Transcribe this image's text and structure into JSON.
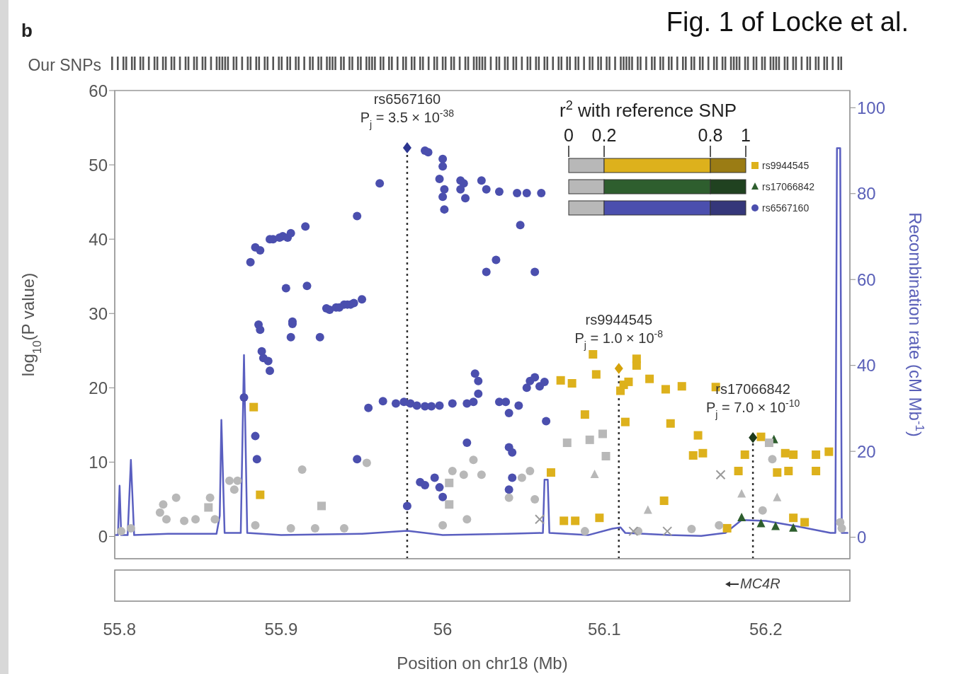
{
  "chart_data": {
    "type": "scatter",
    "xlabel": "Position on chr18 (Mb)",
    "ylabel": "log$_{10}$(P value)",
    "y2label": "Recombination rate (cM Mb$^{-1}$)",
    "legend_title": "r$^{2}$ with reference SNP",
    "legend": "top right",
    "xlim": [
      55.797,
      56.252
    ],
    "xticks": [
      55.8,
      55.9,
      56,
      56.1,
      56.2
    ],
    "ylim": [
      -3,
      60
    ],
    "yticks": [
      0,
      10,
      20,
      30,
      40,
      50,
      60
    ],
    "y2lim": [
      -5,
      104
    ],
    "y2ticks": [
      0,
      20,
      40,
      60,
      80,
      100
    ],
    "annotations": [
      "b",
      "Fig. 1 of Locke et al.",
      "Our SNPs",
      "MC4R",
      "0",
      "0.2",
      "0.8",
      "1",
      {
        "text": "rs6567160\nP$_{j}$ = 3.5 × 10$^{-38}$",
        "x": 55.978,
        "y": 52.3
      },
      {
        "text": "rs9944545\nP$_{j}$ = 1.0 × 10$^{-8}$",
        "x": 56.109,
        "y": 22.6
      },
      {
        "text": "rs17066842\nP$_{j}$ = 7.0 × 10$^{-10}$",
        "x": 56.192,
        "y": 13.3
      }
    ],
    "ref_lines": [
      {
        "axis": "x",
        "value": 55.978,
        "color": "#333333",
        "line_style": "dotted"
      },
      {
        "axis": "x",
        "value": 56.109,
        "color": "#333333",
        "line_style": "dotted"
      },
      {
        "axis": "x",
        "value": 56.192,
        "color": "#333333",
        "line_style": "dotted"
      }
    ],
    "series": [
      {
        "name": "rs9944545",
        "marker": "square",
        "color": "#ddb11c",
        "x": [
          55.883,
          55.887,
          56.073,
          56.08,
          56.093,
          56.095,
          56.088,
          56.112,
          56.11,
          56.115,
          56.12,
          56.12,
          56.128,
          56.138,
          56.148,
          56.169,
          56.113,
          56.141,
          56.158,
          56.155,
          56.161,
          56.187,
          56.183,
          56.197,
          56.212,
          56.217,
          56.207,
          56.214,
          56.231,
          56.239,
          56.231,
          56.067,
          56.137,
          56.075,
          56.082,
          56.097,
          56.176,
          56.217,
          56.224
        ],
        "values": [
          17.4,
          5.6,
          21.0,
          20.6,
          24.5,
          21.8,
          16.4,
          20.4,
          19.6,
          20.8,
          23.9,
          23.0,
          21.2,
          19.8,
          20.2,
          20.1,
          15.4,
          15.2,
          13.6,
          10.9,
          11.2,
          11.0,
          8.8,
          13.4,
          11.2,
          11.0,
          8.6,
          8.8,
          11.0,
          11.4,
          8.8,
          8.6,
          4.8,
          2.1,
          2.1,
          2.5,
          1.1,
          2.5,
          1.9
        ]
      },
      {
        "name": "rs17066842",
        "marker": "triangle",
        "color": "#2e5e2e",
        "x": [
          56.205,
          56.185,
          56.197,
          56.206,
          56.217
        ],
        "values": [
          13.0,
          2.5,
          1.7,
          1.3,
          1.1
        ]
      },
      {
        "name": "rs6567160",
        "marker": "circle",
        "color": "#4b4fae",
        "x": [
          55.881,
          55.884,
          55.887,
          55.893,
          55.895,
          55.899,
          55.901,
          55.904,
          55.906,
          55.915,
          55.947,
          55.961,
          55.989,
          55.991,
          56.0,
          56.0,
          55.998,
          56.001,
          56.0,
          56.001,
          56.011,
          56.013,
          56.011,
          56.014,
          56.024,
          56.027,
          56.035,
          56.046,
          56.052,
          56.061,
          56.048,
          56.027,
          56.033,
          56.057,
          55.886,
          55.887,
          55.888,
          55.889,
          55.892,
          55.893,
          55.903,
          55.907,
          55.907,
          55.906,
          55.916,
          55.924,
          55.928,
          55.93,
          55.934,
          55.936,
          55.939,
          55.941,
          55.943,
          55.945,
          55.95,
          55.954,
          55.963,
          55.971,
          55.976,
          55.98,
          55.984,
          55.989,
          55.993,
          55.998,
          56.006,
          56.015,
          56.019,
          56.022,
          56.02,
          56.022,
          56.035,
          56.039,
          56.041,
          56.047,
          56.052,
          56.054,
          56.057,
          56.06,
          56.063,
          56.064,
          55.877,
          55.986,
          55.989,
          55.995,
          55.998,
          56.0,
          56.015,
          56.041,
          56.043,
          55.884,
          55.885,
          55.947,
          55.978,
          56.043,
          56.041
        ],
        "values": [
          36.9,
          38.9,
          38.5,
          40.0,
          40.0,
          40.2,
          40.4,
          40.2,
          40.8,
          41.7,
          43.1,
          47.5,
          51.9,
          51.7,
          50.8,
          49.8,
          48.1,
          46.7,
          45.7,
          44.0,
          47.9,
          47.5,
          46.7,
          45.5,
          47.9,
          46.7,
          46.4,
          46.2,
          46.2,
          46.2,
          41.9,
          35.6,
          37.2,
          35.6,
          28.5,
          27.8,
          24.9,
          24.0,
          23.6,
          22.3,
          33.4,
          28.9,
          28.6,
          26.8,
          33.7,
          26.8,
          30.7,
          30.5,
          30.8,
          30.8,
          31.2,
          31.2,
          31.2,
          31.4,
          31.9,
          17.3,
          18.2,
          17.9,
          18.1,
          17.9,
          17.6,
          17.5,
          17.5,
          17.6,
          17.9,
          17.9,
          18.1,
          20.9,
          21.9,
          19.2,
          18.1,
          18.1,
          16.6,
          17.6,
          20.0,
          20.9,
          21.4,
          20.2,
          20.8,
          15.5,
          18.7,
          7.3,
          6.9,
          7.9,
          6.6,
          5.3,
          12.6,
          12.0,
          11.3,
          13.5,
          10.4,
          10.4,
          4.1,
          7.9,
          6.3
        ]
      },
      {
        "marker": "circle",
        "color": "#b8b8b8",
        "x": [
          55.835,
          55.827,
          55.825,
          55.856,
          55.868,
          55.873,
          55.871,
          55.913,
          55.953,
          56.019,
          56.006,
          56.013,
          56.024,
          55.801,
          55.807,
          55.829,
          55.84,
          55.847,
          55.859,
          55.884,
          55.906,
          55.921,
          55.939,
          56.0,
          56.015,
          56.054,
          56.049,
          56.041,
          56.057,
          56.204,
          56.154,
          56.171,
          56.198,
          56.246,
          56.247,
          56.121,
          56.088
        ],
        "values": [
          5.2,
          4.3,
          3.2,
          5.2,
          7.5,
          7.5,
          6.3,
          9.0,
          9.9,
          10.3,
          8.8,
          8.3,
          8.3,
          0.7,
          1.1,
          2.3,
          2.1,
          2.3,
          2.3,
          1.5,
          1.1,
          1.1,
          1.1,
          1.5,
          2.3,
          8.8,
          7.9,
          5.2,
          5.0,
          10.4,
          1.0,
          1.5,
          3.5,
          1.9,
          1.1,
          0.7,
          0.7
        ]
      },
      {
        "marker": "square",
        "color": "#b8b8b8",
        "x": [
          55.855,
          55.925,
          56.004,
          56.004,
          56.077,
          56.091,
          56.099,
          56.101,
          56.202
        ],
        "values": [
          3.9,
          4.1,
          4.3,
          7.2,
          12.6,
          13.0,
          13.8,
          10.8,
          12.6
        ]
      },
      {
        "marker": "triangle",
        "color": "#b8b8b8",
        "x": [
          56.094,
          56.127,
          56.185,
          56.207
        ],
        "values": [
          8.3,
          3.5,
          5.7,
          5.2
        ]
      },
      {
        "marker": "cross",
        "color": "#9a9a9a",
        "x": [
          56.172,
          56.06,
          56.118,
          56.139
        ],
        "values": [
          8.3,
          2.3,
          0.7,
          0.7
        ]
      },
      {
        "marker": "diamond",
        "colors": [
          "#2c3590",
          "#d4a20a",
          "#1c3a1c"
        ],
        "color": "#333333",
        "x": [
          55.978,
          56.109,
          56.192
        ],
        "values": [
          52.3,
          22.6,
          13.3
        ]
      },
      {
        "type": "line",
        "axis": "y2",
        "marker": "none",
        "color": "#5a5fc0",
        "x": [
          55.797,
          55.799,
          55.8,
          55.801,
          55.805,
          55.807,
          55.809,
          55.83,
          55.86,
          55.862,
          55.863,
          55.865,
          55.875,
          55.877,
          55.879,
          55.9,
          55.95,
          55.978,
          56.0,
          56.04,
          56.062,
          56.063,
          56.065,
          56.066,
          56.09,
          56.105,
          56.11,
          56.113,
          56.14,
          56.16,
          56.175,
          56.185,
          56.2,
          56.22,
          56.24,
          56.243,
          56.244,
          56.246,
          56.247,
          56.251
        ],
        "values": [
          0.5,
          0.5,
          12,
          0.5,
          0.5,
          18,
          0.5,
          0.8,
          0.8,
          5,
          27.3,
          1,
          1,
          42.4,
          1,
          0.5,
          0.8,
          1.5,
          0.5,
          0.8,
          1,
          13.4,
          13.4,
          1,
          0.5,
          2.0,
          2.3,
          1,
          0.5,
          0.3,
          1,
          4,
          3.8,
          2.5,
          1.0,
          1,
          90.6,
          90.6,
          1,
          1
        ]
      }
    ]
  }
}
